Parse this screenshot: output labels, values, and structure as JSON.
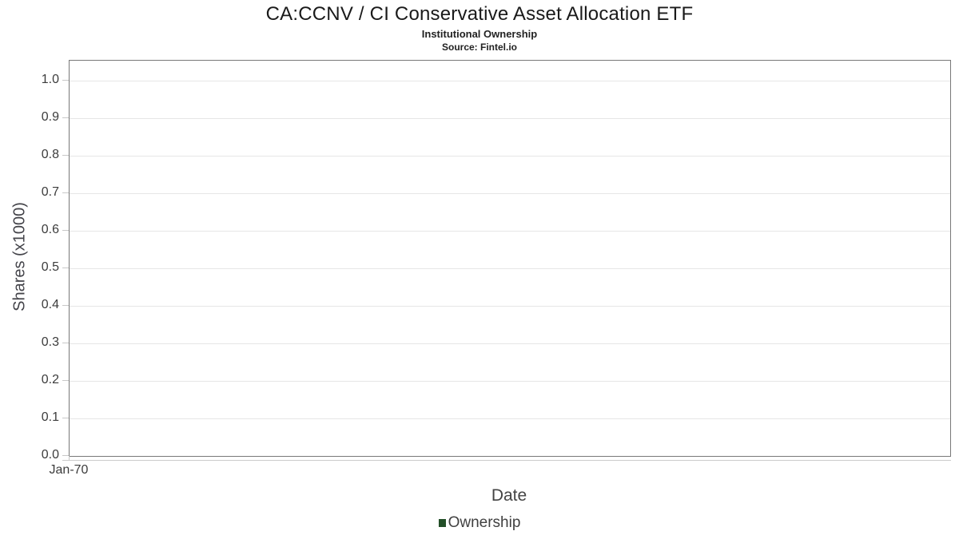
{
  "header": {
    "title": "CA:CCNV / CI Conservative Asset Allocation ETF",
    "subtitle": "Institutional Ownership",
    "source": "Source: Fintel.io"
  },
  "chart_data": {
    "type": "bar",
    "title": "CA:CCNV / CI Conservative Asset Allocation ETF",
    "subtitle": "Institutional Ownership",
    "source": "Source: Fintel.io",
    "xlabel": "Date",
    "ylabel": "Shares (x1000)",
    "x_ticks": [
      "Jan-70"
    ],
    "y_ticks": [
      "0.0",
      "0.1",
      "0.2",
      "0.3",
      "0.4",
      "0.5",
      "0.6",
      "0.7",
      "0.8",
      "0.9",
      "1.0"
    ],
    "ylim": [
      0,
      1.053
    ],
    "grid": true,
    "legend_position": "bottom",
    "series": [
      {
        "name": "Ownership",
        "color": "#234f28",
        "x": [],
        "values": []
      }
    ]
  },
  "legend": {
    "items": [
      {
        "label": "Ownership",
        "color": "#234f28"
      }
    ]
  },
  "colors": {
    "plot_border": "#787878",
    "gridline": "#e6e6e6",
    "tick": "#c8c8c8",
    "axis_line": "#cccccc",
    "axis_text": "#3c3c3c",
    "legend_marker": "#234f28"
  }
}
